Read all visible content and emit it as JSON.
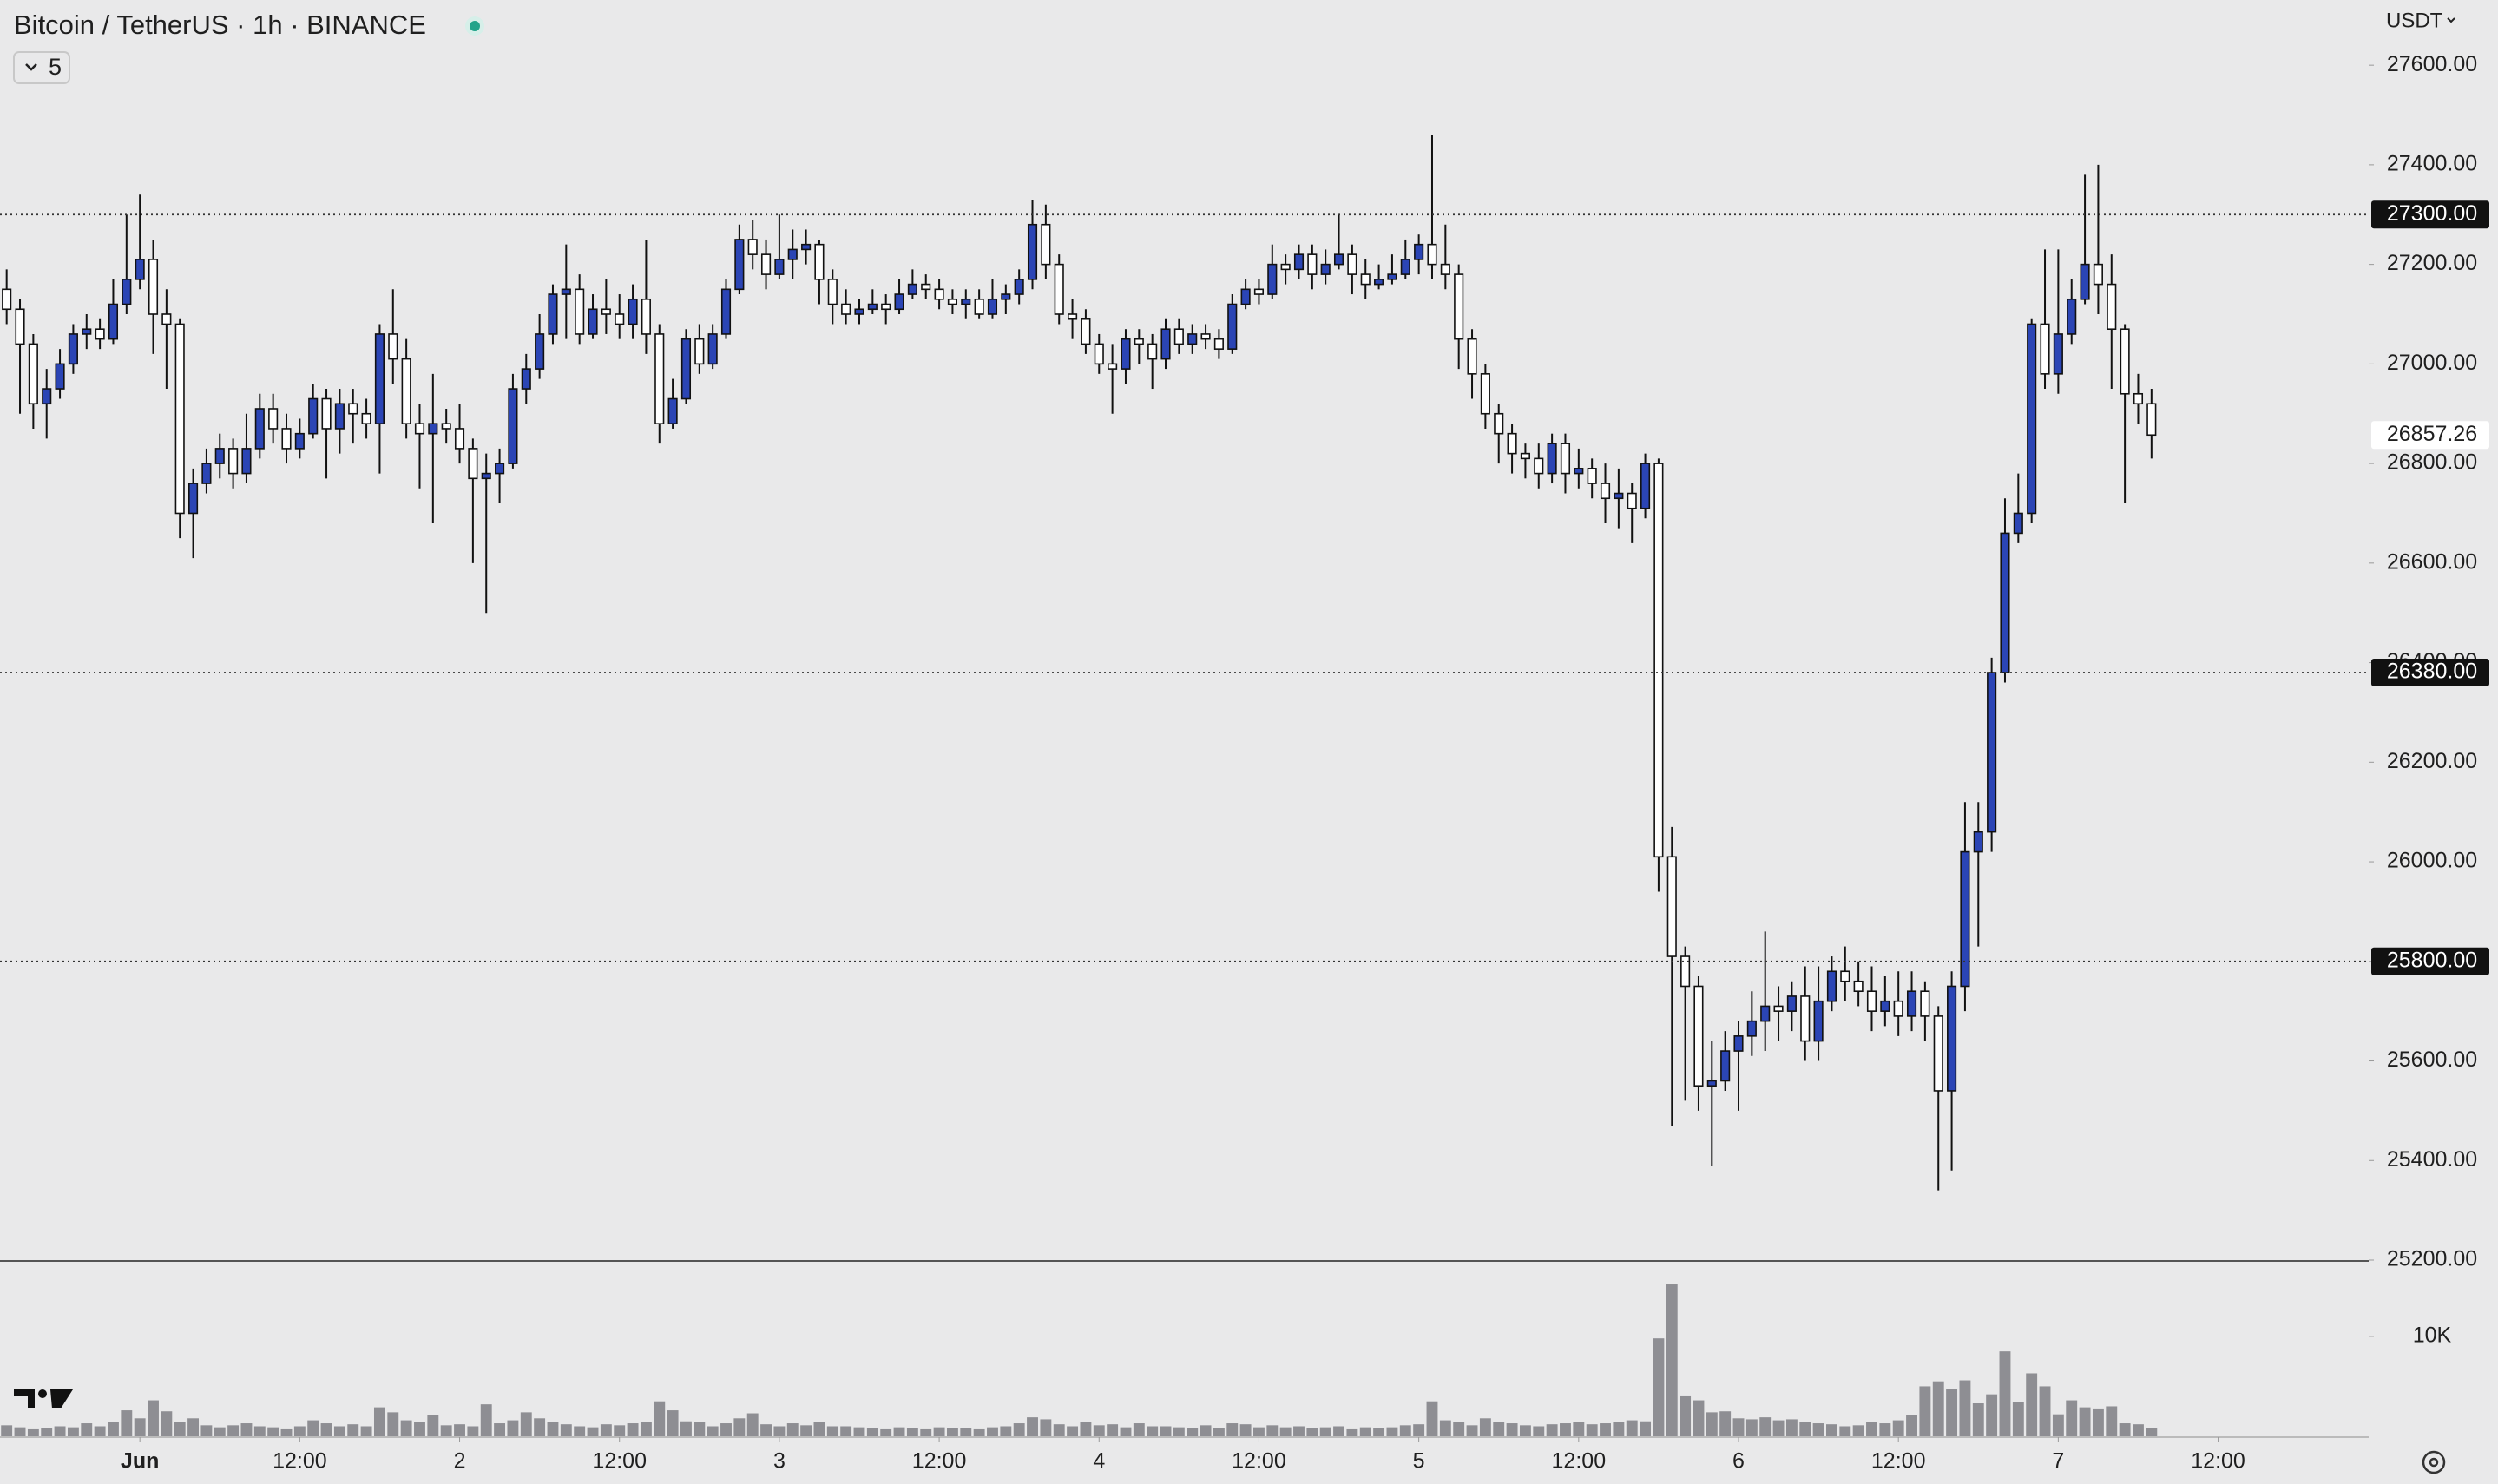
{
  "chart_data": {
    "type": "candlestick",
    "title": "Bitcoin / TetherUS · 1h · BINANCE",
    "indicator_count": "5",
    "currency": "USDT",
    "up_color": "#2b45b5",
    "down_color": "#ffffff",
    "volume_color": "#8e8e93",
    "open": [
      27150,
      27110,
      27040,
      26920,
      26950,
      27000,
      27060,
      27070,
      27050,
      27120,
      27170,
      27210,
      27100,
      27080,
      26700,
      26760,
      26800,
      26830,
      26780,
      26830,
      26910,
      26870,
      26830,
      26860,
      26930,
      26870,
      26920,
      26900,
      26880,
      27060,
      27010,
      26880,
      26860,
      26880,
      26870,
      26830,
      26770,
      26780,
      26800,
      26950,
      26990,
      27060,
      27140,
      27150,
      27060,
      27110,
      27100,
      27080,
      27130,
      27060,
      26880,
      26930,
      27050,
      27000,
      27060,
      27150,
      27250,
      27220,
      27180,
      27210,
      27230,
      27240,
      27170,
      27120,
      27100,
      27110,
      27120,
      27110,
      27140,
      27160,
      27150,
      27130,
      27120,
      27130,
      27100,
      27130,
      27140,
      27170,
      27280,
      27200,
      27100,
      27090,
      27040,
      27000,
      26990,
      27050,
      27040,
      27010,
      27070,
      27040,
      27060,
      27050,
      27030,
      27120,
      27150,
      27140,
      27200,
      27190,
      27220,
      27180,
      27200,
      27220,
      27180,
      27160,
      27170,
      27180,
      27210,
      27240,
      27200,
      27180,
      27050,
      26980,
      26900,
      26860,
      26820,
      26810,
      26780,
      26840,
      26780,
      26790,
      26760,
      26730,
      26740,
      26710,
      26800,
      26010,
      25810,
      25750,
      25550,
      25560,
      25620,
      25650,
      25680,
      25710,
      25700,
      25730,
      25640,
      25720,
      25780,
      25760,
      25740,
      25700,
      25720,
      25690,
      25740,
      25690,
      25540,
      25750,
      26020,
      26060,
      26380,
      26660,
      26700,
      27080,
      26980,
      27060,
      27130,
      27200,
      27160,
      27070,
      26940,
      26920
    ],
    "high": [
      27190,
      27130,
      27060,
      26990,
      27030,
      27080,
      27100,
      27090,
      27170,
      27300,
      27340,
      27250,
      27150,
      27090,
      26790,
      26830,
      26860,
      26850,
      26900,
      26940,
      26940,
      26900,
      26890,
      26960,
      26950,
      26950,
      26950,
      26930,
      27080,
      27150,
      27050,
      26920,
      26980,
      26910,
      26920,
      26850,
      26820,
      26830,
      26980,
      27020,
      27100,
      27160,
      27240,
      27180,
      27140,
      27170,
      27140,
      27160,
      27250,
      27080,
      26970,
      27070,
      27080,
      27080,
      27170,
      27280,
      27290,
      27250,
      27300,
      27270,
      27270,
      27250,
      27190,
      27150,
      27130,
      27150,
      27140,
      27170,
      27190,
      27180,
      27170,
      27150,
      27150,
      27150,
      27170,
      27160,
      27190,
      27330,
      27320,
      27220,
      27130,
      27110,
      27060,
      27040,
      27070,
      27070,
      27060,
      27090,
      27090,
      27080,
      27080,
      27070,
      27140,
      27170,
      27170,
      27240,
      27220,
      27240,
      27240,
      27230,
      27300,
      27240,
      27210,
      27200,
      27220,
      27250,
      27260,
      27460,
      27280,
      27200,
      27070,
      27000,
      26920,
      26880,
      26840,
      26840,
      26860,
      26860,
      26830,
      26810,
      26800,
      26790,
      26760,
      26820,
      26810,
      26070,
      25830,
      25770,
      25640,
      25660,
      25680,
      25740,
      25860,
      25750,
      25760,
      25790,
      25790,
      25810,
      25830,
      25800,
      25790,
      25770,
      25780,
      25780,
      25760,
      25710,
      25780,
      26120,
      26120,
      26410,
      26730,
      26780,
      27090,
      27230,
      27230,
      27170,
      27380,
      27400,
      27220,
      27080,
      26980,
      26950
    ],
    "low": [
      27080,
      26900,
      26870,
      26850,
      26930,
      26980,
      27030,
      27030,
      27040,
      27100,
      27150,
      27020,
      26950,
      26650,
      26610,
      26740,
      26770,
      26750,
      26760,
      26810,
      26840,
      26800,
      26810,
      26850,
      26770,
      26820,
      26840,
      26850,
      26780,
      26960,
      26850,
      26750,
      26680,
      26840,
      26800,
      26600,
      26500,
      26720,
      26790,
      26920,
      26970,
      27040,
      27050,
      27040,
      27050,
      27060,
      27050,
      27050,
      27020,
      26840,
      26870,
      26920,
      26980,
      26990,
      27050,
      27140,
      27190,
      27150,
      27170,
      27170,
      27200,
      27120,
      27080,
      27080,
      27080,
      27100,
      27080,
      27100,
      27130,
      27130,
      27110,
      27100,
      27090,
      27090,
      27090,
      27100,
      27120,
      27150,
      27170,
      27080,
      27050,
      27020,
      26980,
      26900,
      26960,
      27000,
      26950,
      26990,
      27020,
      27020,
      27030,
      27010,
      27020,
      27110,
      27120,
      27130,
      27160,
      27170,
      27150,
      27160,
      27190,
      27140,
      27130,
      27150,
      27160,
      27170,
      27180,
      27170,
      27150,
      26990,
      26930,
      26870,
      26800,
      26780,
      26770,
      26750,
      26760,
      26740,
      26750,
      26730,
      26680,
      26670,
      26640,
      26690,
      25940,
      25470,
      25520,
      25500,
      25390,
      25540,
      25500,
      25610,
      25620,
      25640,
      25660,
      25600,
      25600,
      25700,
      25720,
      25710,
      25660,
      25670,
      25650,
      25660,
      25640,
      25340,
      25380,
      25700,
      25830,
      26020,
      26360,
      26640,
      26680,
      26950,
      26940,
      27040,
      27120,
      27100,
      26950,
      26720,
      26880,
      26810
    ],
    "close": [
      27110,
      27040,
      26920,
      26950,
      27000,
      27060,
      27070,
      27050,
      27120,
      27170,
      27210,
      27100,
      27080,
      26700,
      26760,
      26800,
      26830,
      26780,
      26830,
      26910,
      26870,
      26830,
      26860,
      26930,
      26870,
      26920,
      26900,
      26880,
      27060,
      27010,
      26880,
      26860,
      26880,
      26870,
      26830,
      26770,
      26780,
      26800,
      26950,
      26990,
      27060,
      27140,
      27150,
      27060,
      27110,
      27100,
      27080,
      27130,
      27060,
      26880,
      26930,
      27050,
      27000,
      27060,
      27150,
      27250,
      27220,
      27180,
      27210,
      27230,
      27240,
      27170,
      27120,
      27100,
      27110,
      27120,
      27110,
      27140,
      27160,
      27150,
      27130,
      27120,
      27130,
      27100,
      27130,
      27140,
      27170,
      27280,
      27200,
      27100,
      27090,
      27040,
      27000,
      26990,
      27050,
      27040,
      27010,
      27070,
      27040,
      27060,
      27050,
      27030,
      27120,
      27150,
      27140,
      27200,
      27190,
      27220,
      27180,
      27200,
      27220,
      27180,
      27160,
      27170,
      27180,
      27210,
      27240,
      27200,
      27180,
      27050,
      26980,
      26900,
      26860,
      26820,
      26810,
      26780,
      26840,
      26780,
      26790,
      26760,
      26730,
      26740,
      26710,
      26800,
      26010,
      25810,
      25750,
      25550,
      25560,
      25620,
      25650,
      25680,
      25710,
      25700,
      25730,
      25640,
      25720,
      25780,
      25760,
      25740,
      25700,
      25720,
      25690,
      25740,
      25690,
      25540,
      25750,
      26020,
      26060,
      26380,
      26660,
      26700,
      27080,
      26980,
      27060,
      27130,
      27200,
      27160,
      27070,
      26940,
      26920,
      26857.26
    ],
    "volume": [
      1100,
      900,
      700,
      800,
      1000,
      900,
      1300,
      1000,
      1400,
      2600,
      1800,
      3600,
      2500,
      1400,
      1800,
      1100,
      900,
      1100,
      1300,
      1000,
      900,
      700,
      1000,
      1600,
      1300,
      1000,
      1200,
      1000,
      2900,
      2400,
      1600,
      1400,
      2100,
      1100,
      1200,
      1000,
      3200,
      1300,
      1600,
      2400,
      1800,
      1400,
      1200,
      1000,
      900,
      1200,
      1100,
      1300,
      1400,
      3500,
      2600,
      1500,
      1400,
      1000,
      1300,
      1800,
      2300,
      1200,
      1000,
      1300,
      1100,
      1400,
      1000,
      1000,
      900,
      800,
      700,
      900,
      800,
      700,
      900,
      800,
      800,
      700,
      900,
      1000,
      1300,
      1900,
      1700,
      1200,
      1000,
      1400,
      1100,
      1200,
      900,
      1300,
      1000,
      1000,
      900,
      800,
      1100,
      800,
      1300,
      1200,
      900,
      1100,
      900,
      1000,
      800,
      900,
      1000,
      700,
      900,
      800,
      900,
      1100,
      1200,
      3500,
      1600,
      1400,
      1100,
      1800,
      1400,
      1300,
      1100,
      1000,
      1200,
      1300,
      1400,
      1200,
      1300,
      1400,
      1600,
      1500,
      9800,
      15200,
      4000,
      3600,
      2400,
      2500,
      1800,
      1700,
      1900,
      1600,
      1700,
      1400,
      1300,
      1200,
      1000,
      1100,
      1400,
      1300,
      1600,
      2100,
      5000,
      5500,
      4700,
      5600,
      3300,
      4200,
      8500,
      3400,
      6300,
      5000,
      2200,
      3600,
      2900,
      2700,
      3000,
      1300,
      1200,
      800
    ],
    "xlim": [
      -0.5,
      177.3
    ],
    "xticks": [
      {
        "value": 10,
        "label": "Jun"
      },
      {
        "value": 22,
        "label": "12:00"
      },
      {
        "value": 34,
        "label": "2"
      },
      {
        "value": 46,
        "label": "12:00"
      },
      {
        "value": 58,
        "label": "3"
      },
      {
        "value": 70,
        "label": "12:00"
      },
      {
        "value": 82,
        "label": "4"
      },
      {
        "value": 94,
        "label": "12:00"
      },
      {
        "value": 106,
        "label": "5"
      },
      {
        "value": 118,
        "label": "12:00"
      },
      {
        "value": 130,
        "label": "6"
      },
      {
        "value": 142,
        "label": "12:00"
      },
      {
        "value": 154,
        "label": "7"
      },
      {
        "value": 166,
        "label": "12:00"
      }
    ],
    "ylim": [
      25200,
      27731
    ],
    "yticks": [
      {
        "value": 25200,
        "label": "25200.00"
      },
      {
        "value": 25400,
        "label": "25400.00"
      },
      {
        "value": 25600,
        "label": "25600.00"
      },
      {
        "value": 25800,
        "label": "25800.00"
      },
      {
        "value": 26000,
        "label": "26000.00"
      },
      {
        "value": 26200,
        "label": "26200.00"
      },
      {
        "value": 26400,
        "label": "26400.00"
      },
      {
        "value": 26600,
        "label": "26600.00"
      },
      {
        "value": 26800,
        "label": "26800.00"
      },
      {
        "value": 27000,
        "label": "27000.00"
      },
      {
        "value": 27200,
        "label": "27200.00"
      },
      {
        "value": 27400,
        "label": "27400.00"
      },
      {
        "value": 27600,
        "label": "27600.00"
      }
    ],
    "hlines": [
      {
        "value": 27300,
        "label": "27300.00"
      },
      {
        "value": 26380,
        "label": "26380.00"
      },
      {
        "value": 25800,
        "label": "25800.00"
      }
    ],
    "last_price": 26857.26,
    "volume_ylim": [
      0,
      17460
    ],
    "volume_yticks": [
      {
        "value": 10000,
        "label": "10K"
      }
    ]
  }
}
